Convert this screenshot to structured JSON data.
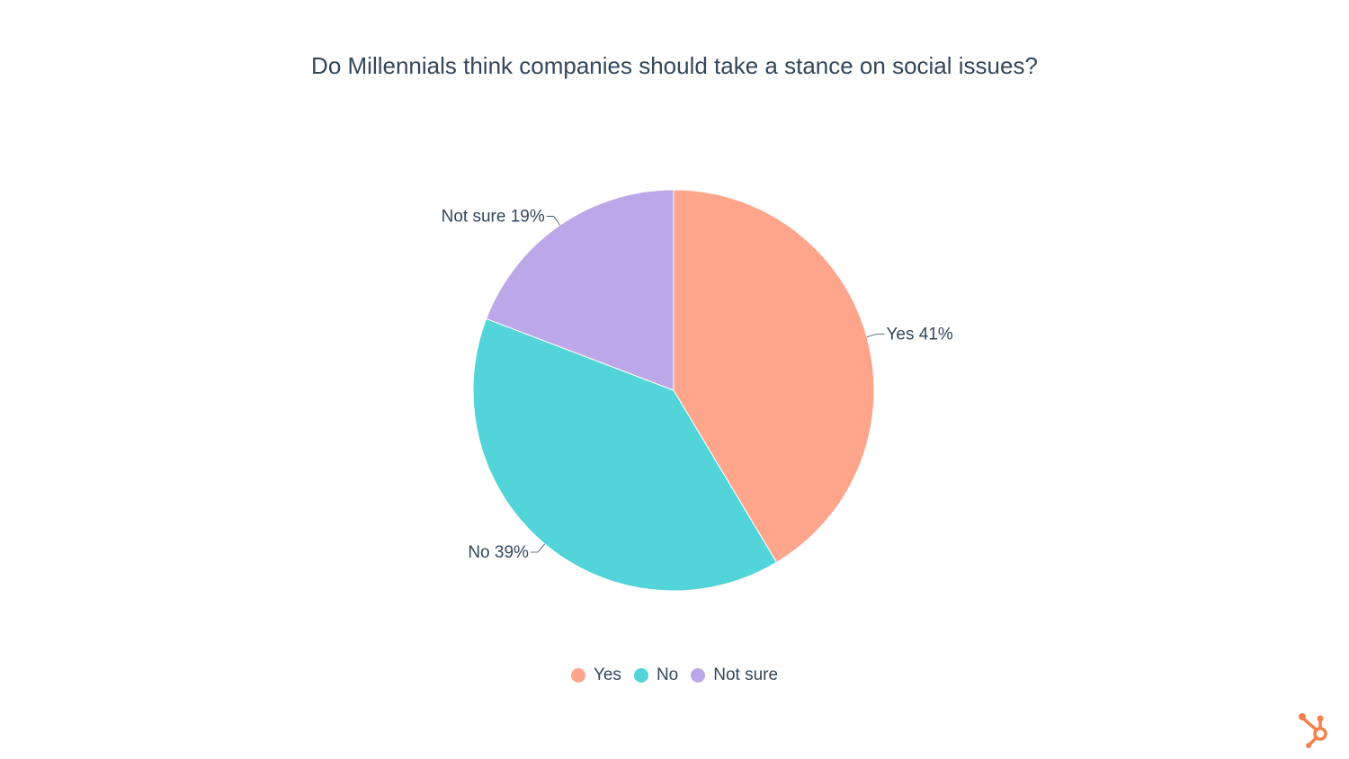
{
  "chart_data": {
    "type": "pie",
    "title": "Do Millennials think companies should take a stance on social issues?",
    "slices": [
      {
        "label": "Yes",
        "value": 41,
        "data_label": "Yes 41%",
        "color": "#fea58b"
      },
      {
        "label": "No",
        "value": 39,
        "data_label": "No 39%",
        "color": "#53d4d8"
      },
      {
        "label": "Not sure",
        "value": 19,
        "data_label": "Not sure 19%",
        "color": "#bca8e8"
      }
    ],
    "start_angle": "top, clockwise",
    "legend_placement": "bottom"
  },
  "branding": {
    "logo": "hubspot-sprocket-logo",
    "logo_color": "#f5804c"
  }
}
